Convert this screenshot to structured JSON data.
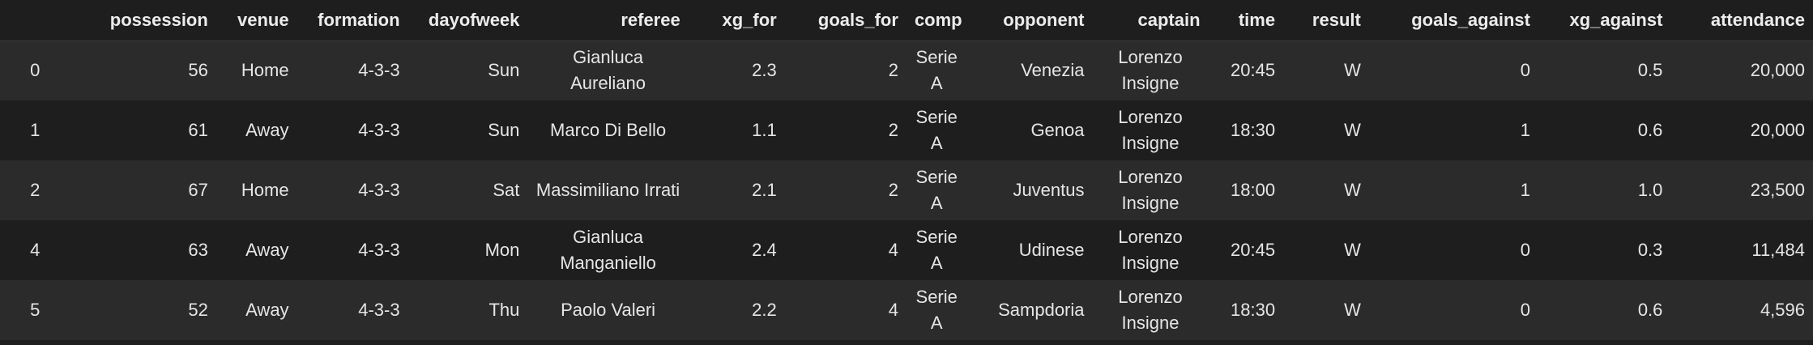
{
  "table": {
    "index_header": "",
    "columns": [
      "possession",
      "venue",
      "formation",
      "dayofweek",
      "referee",
      "xg_for",
      "goals_for",
      "comp",
      "opponent",
      "captain",
      "time",
      "result",
      "goals_against",
      "xg_against",
      "attendance"
    ],
    "rows": [
      {
        "index": "0",
        "possession": "56",
        "venue": "Home",
        "formation": "4-3-3",
        "dayofweek": "Sun",
        "referee": "Gianluca Aureliano",
        "xg_for": "2.3",
        "goals_for": "2",
        "comp": "Serie A",
        "opponent": "Venezia",
        "captain": "Lorenzo Insigne",
        "time": "20:45",
        "result": "W",
        "goals_against": "0",
        "xg_against": "0.5",
        "attendance": "20,000"
      },
      {
        "index": "1",
        "possession": "61",
        "venue": "Away",
        "formation": "4-3-3",
        "dayofweek": "Sun",
        "referee": "Marco Di Bello",
        "xg_for": "1.1",
        "goals_for": "2",
        "comp": "Serie A",
        "opponent": "Genoa",
        "captain": "Lorenzo Insigne",
        "time": "18:30",
        "result": "W",
        "goals_against": "1",
        "xg_against": "0.6",
        "attendance": "20,000"
      },
      {
        "index": "2",
        "possession": "67",
        "venue": "Home",
        "formation": "4-3-3",
        "dayofweek": "Sat",
        "referee": "Massimiliano Irrati",
        "xg_for": "2.1",
        "goals_for": "2",
        "comp": "Serie A",
        "opponent": "Juventus",
        "captain": "Lorenzo Insigne",
        "time": "18:00",
        "result": "W",
        "goals_against": "1",
        "xg_against": "1.0",
        "attendance": "23,500"
      },
      {
        "index": "4",
        "possession": "63",
        "venue": "Away",
        "formation": "4-3-3",
        "dayofweek": "Mon",
        "referee": "Gianluca Manganiello",
        "xg_for": "2.4",
        "goals_for": "4",
        "comp": "Serie A",
        "opponent": "Udinese",
        "captain": "Lorenzo Insigne",
        "time": "20:45",
        "result": "W",
        "goals_against": "0",
        "xg_against": "0.3",
        "attendance": "11,484"
      },
      {
        "index": "5",
        "possession": "52",
        "venue": "Away",
        "formation": "4-3-3",
        "dayofweek": "Thu",
        "referee": "Paolo Valeri",
        "xg_for": "2.2",
        "goals_for": "4",
        "comp": "Serie A",
        "opponent": "Sampdoria",
        "captain": "Lorenzo Insigne",
        "time": "18:30",
        "result": "W",
        "goals_against": "0",
        "xg_against": "0.6",
        "attendance": "4,596"
      }
    ]
  }
}
